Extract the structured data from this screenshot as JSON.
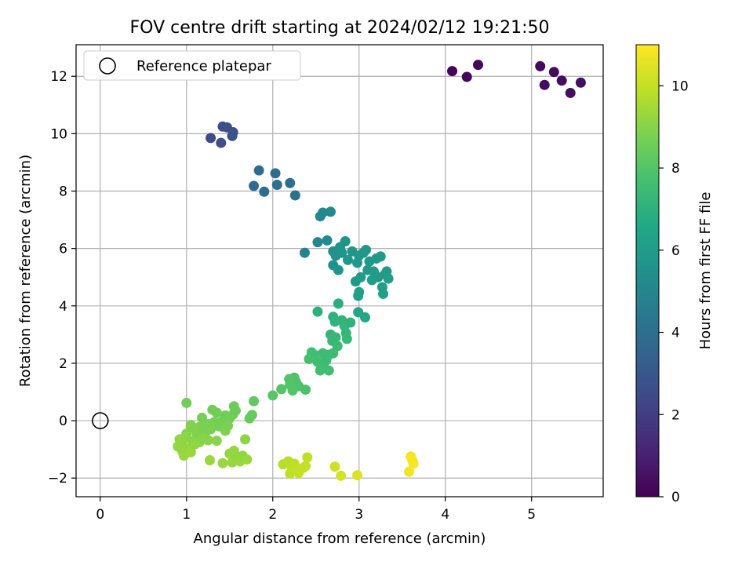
{
  "chart_data": {
    "type": "scatter",
    "title": "FOV centre drift starting at 2024/02/12 19:21:50",
    "xlabel": "Angular distance from reference (arcmin)",
    "ylabel": "Rotation from reference (arcmin)",
    "xlim": [
      -0.28,
      5.83
    ],
    "ylim": [
      -2.65,
      13.1
    ],
    "xticks": [
      0,
      1,
      2,
      3,
      4,
      5
    ],
    "yticks": [
      -2,
      0,
      2,
      4,
      6,
      8,
      10,
      12
    ],
    "ytick_labels": [
      "−2",
      "0",
      "2",
      "4",
      "6",
      "8",
      "10",
      "12"
    ],
    "grid": true,
    "legend": {
      "position": "top-left",
      "label": "Reference platepar",
      "marker": "open-circle"
    },
    "reference_point": {
      "x": 0,
      "y": 0
    },
    "colorbar": {
      "label": "Hours from first FF file",
      "range": [
        0,
        11
      ],
      "ticks": [
        0,
        2,
        4,
        6,
        8,
        10
      ],
      "colormap": "viridis"
    },
    "points": [
      {
        "x": 4.08,
        "y": 12.18,
        "c": 0.1
      },
      {
        "x": 4.25,
        "y": 11.98,
        "c": 0.15
      },
      {
        "x": 4.38,
        "y": 12.4,
        "c": 0.2
      },
      {
        "x": 5.1,
        "y": 12.35,
        "c": 0.25
      },
      {
        "x": 5.15,
        "y": 11.7,
        "c": 0.3
      },
      {
        "x": 5.26,
        "y": 12.15,
        "c": 0.3
      },
      {
        "x": 5.35,
        "y": 11.85,
        "c": 0.35
      },
      {
        "x": 5.45,
        "y": 11.42,
        "c": 0.4
      },
      {
        "x": 5.57,
        "y": 11.78,
        "c": 0.4
      },
      {
        "x": 1.28,
        "y": 9.85,
        "c": 2.5
      },
      {
        "x": 1.4,
        "y": 9.68,
        "c": 2.6
      },
      {
        "x": 1.42,
        "y": 10.25,
        "c": 2.6
      },
      {
        "x": 1.47,
        "y": 10.22,
        "c": 2.7
      },
      {
        "x": 1.54,
        "y": 10.05,
        "c": 2.7
      },
      {
        "x": 1.53,
        "y": 9.92,
        "c": 2.8
      },
      {
        "x": 1.78,
        "y": 8.18,
        "c": 3.8
      },
      {
        "x": 1.84,
        "y": 8.72,
        "c": 3.8
      },
      {
        "x": 1.9,
        "y": 7.98,
        "c": 3.9
      },
      {
        "x": 2.03,
        "y": 8.62,
        "c": 3.9
      },
      {
        "x": 2.05,
        "y": 8.22,
        "c": 4.0
      },
      {
        "x": 2.2,
        "y": 8.28,
        "c": 4.0
      },
      {
        "x": 2.26,
        "y": 7.85,
        "c": 4.1
      },
      {
        "x": 2.37,
        "y": 5.85,
        "c": 4.9
      },
      {
        "x": 2.52,
        "y": 6.22,
        "c": 5.0
      },
      {
        "x": 2.55,
        "y": 7.12,
        "c": 5.1
      },
      {
        "x": 2.58,
        "y": 7.25,
        "c": 5.1
      },
      {
        "x": 2.63,
        "y": 6.28,
        "c": 5.2
      },
      {
        "x": 2.67,
        "y": 7.28,
        "c": 5.2
      },
      {
        "x": 2.7,
        "y": 5.42,
        "c": 5.5
      },
      {
        "x": 2.7,
        "y": 5.9,
        "c": 5.5
      },
      {
        "x": 2.73,
        "y": 5.75,
        "c": 5.6
      },
      {
        "x": 2.76,
        "y": 5.25,
        "c": 5.7
      },
      {
        "x": 2.78,
        "y": 6.05,
        "c": 5.6
      },
      {
        "x": 2.8,
        "y": 5.85,
        "c": 5.7
      },
      {
        "x": 2.84,
        "y": 6.25,
        "c": 5.6
      },
      {
        "x": 2.87,
        "y": 5.6,
        "c": 5.8
      },
      {
        "x": 2.92,
        "y": 5.9,
        "c": 5.8
      },
      {
        "x": 2.96,
        "y": 4.85,
        "c": 6.0
      },
      {
        "x": 2.98,
        "y": 5.5,
        "c": 5.9
      },
      {
        "x": 3.0,
        "y": 5.75,
        "c": 5.9
      },
      {
        "x": 3.02,
        "y": 5.0,
        "c": 6.0
      },
      {
        "x": 3.05,
        "y": 5.85,
        "c": 5.8
      },
      {
        "x": 3.08,
        "y": 5.95,
        "c": 5.8
      },
      {
        "x": 3.1,
        "y": 5.25,
        "c": 6.0
      },
      {
        "x": 3.12,
        "y": 5.55,
        "c": 5.9
      },
      {
        "x": 3.15,
        "y": 4.9,
        "c": 6.1
      },
      {
        "x": 3.17,
        "y": 5.2,
        "c": 6.0
      },
      {
        "x": 3.2,
        "y": 5.65,
        "c": 5.9
      },
      {
        "x": 3.22,
        "y": 5.0,
        "c": 6.0
      },
      {
        "x": 3.25,
        "y": 5.72,
        "c": 5.9
      },
      {
        "x": 3.27,
        "y": 4.65,
        "c": 6.1
      },
      {
        "x": 3.28,
        "y": 4.42,
        "c": 6.2
      },
      {
        "x": 3.3,
        "y": 5.1,
        "c": 6.0
      },
      {
        "x": 3.32,
        "y": 5.2,
        "c": 6.0
      },
      {
        "x": 3.34,
        "y": 4.95,
        "c": 6.1
      },
      {
        "x": 2.99,
        "y": 4.35,
        "c": 6.2
      },
      {
        "x": 3.0,
        "y": 4.48,
        "c": 6.2
      },
      {
        "x": 2.99,
        "y": 3.78,
        "c": 6.5
      },
      {
        "x": 3.07,
        "y": 3.6,
        "c": 6.5
      },
      {
        "x": 2.52,
        "y": 3.8,
        "c": 7.0
      },
      {
        "x": 2.7,
        "y": 3.62,
        "c": 7.0
      },
      {
        "x": 2.72,
        "y": 3.45,
        "c": 7.1
      },
      {
        "x": 2.76,
        "y": 4.08,
        "c": 6.9
      },
      {
        "x": 2.8,
        "y": 3.5,
        "c": 7.1
      },
      {
        "x": 2.83,
        "y": 3.3,
        "c": 7.2
      },
      {
        "x": 2.85,
        "y": 3.05,
        "c": 7.2
      },
      {
        "x": 2.86,
        "y": 2.85,
        "c": 7.3
      },
      {
        "x": 2.9,
        "y": 3.42,
        "c": 7.1
      },
      {
        "x": 2.67,
        "y": 3.0,
        "c": 7.2
      },
      {
        "x": 2.69,
        "y": 2.78,
        "c": 7.3
      },
      {
        "x": 2.73,
        "y": 2.9,
        "c": 7.3
      },
      {
        "x": 2.75,
        "y": 2.6,
        "c": 7.4
      },
      {
        "x": 2.7,
        "y": 2.35,
        "c": 7.5
      },
      {
        "x": 2.65,
        "y": 2.3,
        "c": 7.5
      },
      {
        "x": 2.62,
        "y": 2.1,
        "c": 7.5
      },
      {
        "x": 2.6,
        "y": 1.82,
        "c": 7.6
      },
      {
        "x": 2.65,
        "y": 1.75,
        "c": 7.6
      },
      {
        "x": 2.58,
        "y": 2.35,
        "c": 7.5
      },
      {
        "x": 2.55,
        "y": 1.75,
        "c": 7.6
      },
      {
        "x": 2.52,
        "y": 2.05,
        "c": 7.6
      },
      {
        "x": 2.48,
        "y": 2.3,
        "c": 7.6
      },
      {
        "x": 2.45,
        "y": 2.38,
        "c": 7.6
      },
      {
        "x": 2.42,
        "y": 2.15,
        "c": 7.7
      },
      {
        "x": 2.38,
        "y": 1.08,
        "c": 7.8
      },
      {
        "x": 2.3,
        "y": 1.2,
        "c": 7.9
      },
      {
        "x": 2.27,
        "y": 1.35,
        "c": 7.9
      },
      {
        "x": 2.25,
        "y": 1.5,
        "c": 7.9
      },
      {
        "x": 2.2,
        "y": 1.25,
        "c": 8.0
      },
      {
        "x": 2.19,
        "y": 1.45,
        "c": 8.0
      },
      {
        "x": 2.1,
        "y": 1.1,
        "c": 8.0
      },
      {
        "x": 2.0,
        "y": 0.88,
        "c": 8.1
      },
      {
        "x": 2.23,
        "y": 1.05,
        "c": 8.0
      },
      {
        "x": 1.78,
        "y": 0.68,
        "c": 8.3
      },
      {
        "x": 1.76,
        "y": 0.2,
        "c": 8.4
      },
      {
        "x": 1.73,
        "y": 0.08,
        "c": 8.4
      },
      {
        "x": 1.55,
        "y": 0.5,
        "c": 8.5
      },
      {
        "x": 1.57,
        "y": 0.35,
        "c": 8.5
      },
      {
        "x": 1.54,
        "y": 0.22,
        "c": 8.5
      },
      {
        "x": 1.5,
        "y": 0.08,
        "c": 8.6
      },
      {
        "x": 1.45,
        "y": 0.18,
        "c": 8.6
      },
      {
        "x": 1.4,
        "y": -0.05,
        "c": 8.6
      },
      {
        "x": 1.38,
        "y": -0.2,
        "c": 8.7
      },
      {
        "x": 1.35,
        "y": 0.28,
        "c": 8.6
      },
      {
        "x": 1.3,
        "y": 0.38,
        "c": 8.6
      },
      {
        "x": 1.32,
        "y": -0.05,
        "c": 8.7
      },
      {
        "x": 1.25,
        "y": -0.12,
        "c": 8.7
      },
      {
        "x": 1.28,
        "y": -0.3,
        "c": 8.8
      },
      {
        "x": 1.2,
        "y": -0.08,
        "c": 8.8
      },
      {
        "x": 1.22,
        "y": -0.4,
        "c": 8.8
      },
      {
        "x": 1.18,
        "y": 0.1,
        "c": 8.7
      },
      {
        "x": 1.15,
        "y": -0.22,
        "c": 8.8
      },
      {
        "x": 1.12,
        "y": -0.5,
        "c": 8.9
      },
      {
        "x": 1.1,
        "y": -0.3,
        "c": 8.9
      },
      {
        "x": 1.05,
        "y": -0.15,
        "c": 8.9
      },
      {
        "x": 1.07,
        "y": -0.72,
        "c": 9.0
      },
      {
        "x": 1.0,
        "y": -0.45,
        "c": 9.0
      },
      {
        "x": 0.98,
        "y": -0.6,
        "c": 9.1
      },
      {
        "x": 0.95,
        "y": -0.78,
        "c": 9.1
      },
      {
        "x": 0.92,
        "y": -0.65,
        "c": 9.2
      },
      {
        "x": 0.9,
        "y": -0.9,
        "c": 9.2
      },
      {
        "x": 0.95,
        "y": -1.05,
        "c": 9.2
      },
      {
        "x": 0.97,
        "y": -1.22,
        "c": 9.3
      },
      {
        "x": 1.02,
        "y": -0.98,
        "c": 9.2
      },
      {
        "x": 1.05,
        "y": -1.1,
        "c": 9.3
      },
      {
        "x": 1.1,
        "y": -0.82,
        "c": 9.2
      },
      {
        "x": 1.15,
        "y": -0.75,
        "c": 9.1
      },
      {
        "x": 1.2,
        "y": -0.62,
        "c": 9.0
      },
      {
        "x": 1.25,
        "y": -0.68,
        "c": 9.0
      },
      {
        "x": 1.27,
        "y": -1.38,
        "c": 9.3
      },
      {
        "x": 1.42,
        "y": -1.48,
        "c": 9.3
      },
      {
        "x": 1.5,
        "y": -1.15,
        "c": 9.2
      },
      {
        "x": 1.53,
        "y": -1.45,
        "c": 9.3
      },
      {
        "x": 1.55,
        "y": -1.05,
        "c": 9.2
      },
      {
        "x": 1.58,
        "y": -1.28,
        "c": 9.2
      },
      {
        "x": 1.62,
        "y": -1.42,
        "c": 9.3
      },
      {
        "x": 1.65,
        "y": -1.22,
        "c": 9.2
      },
      {
        "x": 1.68,
        "y": -0.65,
        "c": 9.1
      },
      {
        "x": 1.7,
        "y": -1.35,
        "c": 9.3
      },
      {
        "x": 1.35,
        "y": -0.7,
        "c": 9.0
      },
      {
        "x": 1.45,
        "y": -0.35,
        "c": 8.9
      },
      {
        "x": 1.48,
        "y": -0.18,
        "c": 8.8
      },
      {
        "x": 1.0,
        "y": 0.62,
        "c": 8.6
      },
      {
        "x": 1.05,
        "y": -0.2,
        "c": 8.9
      },
      {
        "x": 2.12,
        "y": -1.52,
        "c": 9.8
      },
      {
        "x": 2.18,
        "y": -1.42,
        "c": 9.8
      },
      {
        "x": 2.2,
        "y": -1.85,
        "c": 9.9
      },
      {
        "x": 2.22,
        "y": -1.6,
        "c": 9.9
      },
      {
        "x": 2.25,
        "y": -1.5,
        "c": 9.9
      },
      {
        "x": 2.28,
        "y": -1.72,
        "c": 10.0
      },
      {
        "x": 2.3,
        "y": -1.82,
        "c": 10.0
      },
      {
        "x": 2.35,
        "y": -1.65,
        "c": 10.0
      },
      {
        "x": 2.4,
        "y": -1.28,
        "c": 9.9
      },
      {
        "x": 2.38,
        "y": -1.58,
        "c": 10.0
      },
      {
        "x": 2.72,
        "y": -1.6,
        "c": 10.2
      },
      {
        "x": 2.79,
        "y": -1.92,
        "c": 10.3
      },
      {
        "x": 2.98,
        "y": -1.9,
        "c": 10.4
      },
      {
        "x": 3.58,
        "y": -1.78,
        "c": 10.8
      },
      {
        "x": 3.6,
        "y": -1.25,
        "c": 10.8
      },
      {
        "x": 3.62,
        "y": -1.4,
        "c": 10.9
      },
      {
        "x": 3.63,
        "y": -1.5,
        "c": 10.9
      }
    ]
  }
}
